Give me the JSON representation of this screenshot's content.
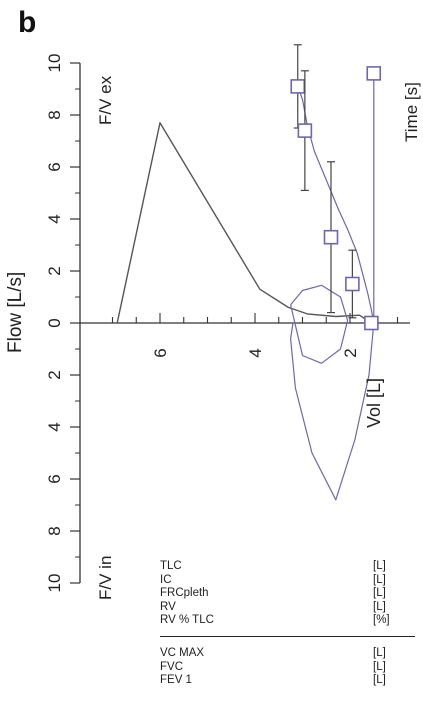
{
  "panel_label": "b",
  "chart_data": {
    "type": "line",
    "title": "",
    "ylabel": "Flow [L/s]",
    "xlabel": "Vol [L]",
    "x_axis_note": "Time [s]",
    "upper_region_label": "F/V ex",
    "lower_region_label": "F/V in",
    "xlim": [
      7,
      1
    ],
    "ylim": [
      -10,
      10
    ],
    "x_ticks": [
      6,
      4,
      2
    ],
    "y_ticks_top": [
      "10",
      "8",
      "6",
      "4",
      "2",
      "0"
    ],
    "y_ticks_bottom": [
      "2",
      "4",
      "6",
      "8",
      "10"
    ],
    "colors": {
      "predicted": "#555555",
      "measured": "#6b66b8"
    },
    "series": [
      {
        "x": [
          6.9,
          6.0,
          3.9,
          3.3,
          2.9,
          2.3,
          1.8,
          1.55
        ],
        "y": [
          0,
          7.7,
          1.3,
          0.6,
          0.35,
          0.25,
          0.3,
          0.0
        ]
      },
      {
        "x": [
          3.1,
          3.0,
          2.9,
          2.75,
          2.5,
          2.25,
          2.05,
          1.85,
          1.72,
          1.62,
          1.55,
          1.5,
          1.6,
          1.9,
          2.3,
          2.8,
          3.15,
          3.25,
          3.2
        ],
        "y": [
          9.1,
          8.6,
          7.6,
          6.6,
          5.5,
          4.4,
          3.6,
          2.7,
          1.8,
          1.1,
          0.5,
          0.0,
          -2.0,
          -4.5,
          -6.8,
          -5.0,
          -2.5,
          -0.6,
          0.0
        ]
      },
      {
        "x": [
          3.25,
          3.0,
          2.6,
          2.2,
          2.05,
          2.2,
          2.6,
          3.0,
          3.25
        ],
        "y": [
          0.7,
          1.25,
          1.45,
          1.0,
          0.1,
          -1.0,
          -1.55,
          -1.25,
          0.7
        ]
      },
      {
        "x": [
          1.5,
          1.5
        ],
        "y": [
          0.0,
          9.6
        ]
      }
    ],
    "predicted_points": [
      {
        "x": 3.1,
        "y": 9.1,
        "err": 1.6
      },
      {
        "x": 2.95,
        "y": 7.4,
        "err": 2.3
      },
      {
        "x": 2.4,
        "y": 3.3,
        "err": 2.9
      },
      {
        "x": 1.95,
        "y": 1.5,
        "err": 1.3
      },
      {
        "x": 1.55,
        "y": 0.0,
        "err": 0
      },
      {
        "x": 1.5,
        "y": 9.6,
        "err": 0
      }
    ]
  },
  "table": {
    "group1": [
      {
        "name": "TLC",
        "unit": "[L]"
      },
      {
        "name": "IC",
        "unit": "[L]"
      },
      {
        "name": "FRCpleth",
        "unit": "[L]"
      },
      {
        "name": "RV",
        "unit": "[L]"
      },
      {
        "name": "RV % TLC",
        "unit": "[%]"
      }
    ],
    "group2": [
      {
        "name": "VC MAX",
        "unit": "[L]"
      },
      {
        "name": "FVC",
        "unit": "[L]"
      },
      {
        "name": "FEV 1",
        "unit": "[L]"
      }
    ]
  }
}
